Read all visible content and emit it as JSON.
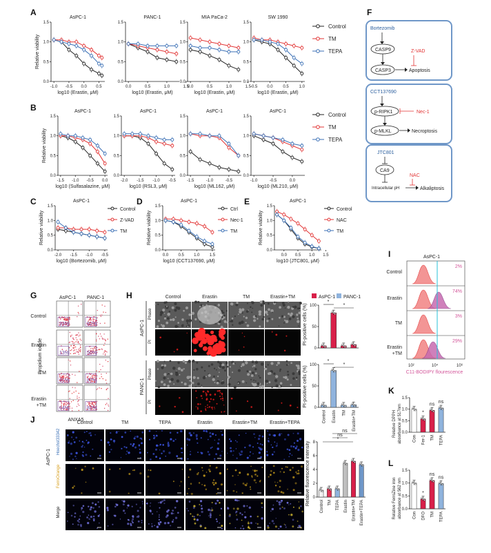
{
  "panel_labels": [
    "A",
    "B",
    "C",
    "D",
    "E",
    "F",
    "G",
    "H",
    "I",
    "J",
    "K",
    "L"
  ],
  "colors": {
    "control": "#222222",
    "tm": "#e23333",
    "tepa": "#3a6fb5",
    "box": "#6f97c8",
    "pink": "#d3569a",
    "cyan": "#27c0d8",
    "aspc": "#d81f49",
    "panc": "#8fb3dd",
    "gray": "#bfbfbf"
  },
  "legend_ctl": {
    "control": "Control",
    "tm": "TM",
    "tepa": "TEPA"
  },
  "legend_c": {
    "control": "Control",
    "zvad": "Z-VAD",
    "tm": "TM"
  },
  "legend_d": {
    "ctrl": "Ctrl",
    "nec": "Nec-1",
    "tm": "TM"
  },
  "legend_e": {
    "control": "Control",
    "nac": "NAC",
    "tm": "TM"
  },
  "ylabel_viability": "Relative viability",
  "viability_ticks": [
    "0.0",
    "0.5",
    "1.0",
    "1.5"
  ],
  "panel_a": [
    {
      "title": "AsPC-1",
      "xlabel": "log10 (Erastin, μM)",
      "ticks": [
        "-1.0",
        "-0.5",
        "0.0",
        "0.5"
      ]
    },
    {
      "title": "PANC-1",
      "xlabel": "log10 (Erastin, μM)",
      "ticks": [
        "0.0",
        "0.5",
        "1.0",
        "1.5"
      ]
    },
    {
      "title": "MIA PaCa-2",
      "xlabel": "log10 (Erastin, μM)",
      "ticks": [
        "0.0",
        "0.5",
        "1.0",
        "1.5"
      ]
    },
    {
      "title": "SW 1990",
      "xlabel": "log10 (Erastin, μM)",
      "ticks": [
        "-0.5",
        "0.0",
        "0.5",
        "1.0"
      ]
    }
  ],
  "panel_b": [
    {
      "title": "AsPC-1",
      "xlabel": "log10 (Sulfasalazine, μM)",
      "ticks": [
        "-1.5",
        "-1.0",
        "-0.5",
        "0.0"
      ]
    },
    {
      "title": "AsPC-1",
      "xlabel": "log10 (RSL3, μM)",
      "ticks": [
        "-2.0",
        "-1.5",
        "-1.0",
        "-0.5"
      ]
    },
    {
      "title": "AsPC-1",
      "xlabel": "log10 (ML162, μM)",
      "ticks": [
        "-1.5",
        "-1.0",
        "-0.5"
      ]
    },
    {
      "title": "AsPC-1",
      "xlabel": "log10 (ML210, μM)",
      "ticks": [
        "-1.0",
        "-0.5",
        "0.0"
      ]
    }
  ],
  "panel_c": {
    "title": "AsPC-1",
    "xlabel": "log10 (Bortezomib, μM)",
    "ticks": [
      "-2.0",
      "-1.5",
      "-1.0",
      "-0.5"
    ]
  },
  "panel_d": {
    "title": "AsPC-1",
    "xlabel": "log10 (CCT137690, μM)",
    "ticks": [
      "0.0",
      "0.5",
      "1.0",
      "1.5"
    ]
  },
  "panel_e": {
    "title": "AsPC-1",
    "xlabel": "log10 (JTC801, μM)",
    "ticks": [
      "0.0",
      "0.5",
      "1.0",
      "1.5"
    ]
  },
  "panel_f": {
    "box1": {
      "drug": "Bortezomib",
      "n1": "CASP9",
      "n2": "CASP3",
      "inhibitor": "Z-VAD",
      "outcome": "Apoptosis"
    },
    "box2": {
      "drug": "CCT137690",
      "n1": "p-RIPK1",
      "n2": "p-MLKL",
      "inhibitor": "Nec-1",
      "outcome": "Necroptosis"
    },
    "box3": {
      "drug": "JTC801",
      "n1": "CA9",
      "n2": "Intracellular pH",
      "inhibitor": "NAC",
      "outcome": "Alkaliptosis"
    }
  },
  "panel_g": {
    "cols": [
      "AsPC-1",
      "PANC-1"
    ],
    "rows": [
      "Control",
      "Erastin",
      "TM",
      "Erastin\n+TM"
    ],
    "values": [
      [
        "93%",
        "82%"
      ],
      [
        "13%",
        "50%"
      ],
      [
        "91%",
        "87%"
      ],
      [
        "64%",
        "82%"
      ]
    ],
    "ylabel": "Propidium iodide",
    "xlabel": "ANXA5"
  },
  "panel_h": {
    "cols": [
      "Control",
      "Erastin",
      "TM",
      "Erastin+TM"
    ],
    "rows": [
      "Phase",
      "PI",
      "Phase",
      "PI"
    ],
    "groups": [
      "AsPC-1",
      "PANC-1"
    ],
    "legend": [
      "AsPC-1",
      "PANC-1"
    ],
    "ylabel": "PI-positive cells (%)",
    "ticks": [
      "0",
      "50",
      "100"
    ],
    "categories": [
      "Control",
      "Erastin",
      "TM",
      "Erastin+TM"
    ],
    "star": "*"
  },
  "panel_i": {
    "title": "AsPC-1",
    "rows": [
      "Control",
      "Erastin",
      "TM",
      "Erastin\n+TM"
    ],
    "values": [
      "2%",
      "74%",
      "3%",
      "29%"
    ],
    "xlabel": "C11-BODIPY flourescence",
    "ticks": [
      "10²",
      "10⁴",
      "10⁶"
    ]
  },
  "panel_j": {
    "cols": [
      "Control",
      "TM",
      "TEPA",
      "Erastin",
      "Erastin+TM",
      "Erastin+TEPA"
    ],
    "rows": [
      "Hoechst33342",
      "FerroOrange",
      "Merge"
    ],
    "cell_line": "AsPC-1",
    "ylabel": "Relative fluorescence intensity",
    "ticks": [
      "0",
      "2",
      "4",
      "6",
      "8"
    ],
    "ns": "ns",
    "star": "*"
  },
  "panel_k": {
    "ylabel": "Relative DPPH\nabsorbance at 517nm",
    "categories": [
      "Con",
      "Fer-1",
      "TM",
      "TEPA"
    ],
    "ticks": [
      "0.0",
      "0.5",
      "1.0",
      "1.5"
    ],
    "marks": [
      "",
      "*",
      "ns",
      "ns"
    ]
  },
  "panel_l": {
    "ylabel": "Relative FerroZine iron\nabsorbance at 562 nm",
    "categories": [
      "Con",
      "DFO",
      "TM",
      "TEPA"
    ],
    "ticks": [
      "0.0",
      "0.5",
      "1.0",
      "1.5"
    ],
    "marks": [
      "",
      "*",
      "ns",
      "ns"
    ]
  },
  "chart_data": [
    {
      "type": "line",
      "panel": "A",
      "title": "AsPC-1",
      "xlabel": "log10 (Erastin, μM)",
      "ylabel": "Relative viability",
      "ylim": [
        0,
        1.5
      ],
      "x": [
        -1.0,
        -0.75,
        -0.5,
        -0.25,
        0.0,
        0.25,
        0.5,
        0.6
      ],
      "series": [
        {
          "name": "Control",
          "values": [
            1.05,
            1.0,
            0.8,
            0.65,
            0.45,
            0.3,
            0.2,
            0.15
          ]
        },
        {
          "name": "TM",
          "values": [
            1.05,
            1.05,
            1.0,
            1.0,
            0.9,
            0.8,
            0.65,
            0.6
          ]
        },
        {
          "name": "TEPA",
          "values": [
            1.05,
            1.0,
            0.95,
            0.9,
            0.8,
            0.65,
            0.45,
            0.4
          ]
        }
      ]
    },
    {
      "type": "line",
      "panel": "A",
      "title": "PANC-1",
      "xlabel": "log10 (Erastin, μM)",
      "ylabel": "Relative viability",
      "ylim": [
        0,
        1.5
      ],
      "x": [
        0.0,
        0.25,
        0.5,
        0.75,
        1.0,
        1.25
      ],
      "series": [
        {
          "name": "Control",
          "values": [
            0.95,
            0.85,
            0.75,
            0.6,
            0.55,
            0.5
          ]
        },
        {
          "name": "TM",
          "values": [
            0.95,
            0.9,
            0.85,
            0.8,
            0.75,
            0.7
          ]
        },
        {
          "name": "TEPA",
          "values": [
            0.95,
            0.95,
            0.9,
            0.9,
            0.9,
            0.9
          ]
        }
      ]
    },
    {
      "type": "line",
      "panel": "A",
      "title": "MIA PaCa-2",
      "xlabel": "log10 (Erastin, μM)",
      "ylabel": "Relative viability",
      "ylim": [
        0,
        1.5
      ],
      "x": [
        0.0,
        0.25,
        0.5,
        0.75,
        1.0,
        1.25
      ],
      "series": [
        {
          "name": "Control",
          "values": [
            0.8,
            0.75,
            0.65,
            0.55,
            0.4,
            0.3
          ]
        },
        {
          "name": "TM",
          "values": [
            1.1,
            1.05,
            1.0,
            0.95,
            0.9,
            0.85
          ]
        },
        {
          "name": "TEPA",
          "values": [
            0.9,
            0.85,
            0.85,
            0.8,
            0.75,
            0.75
          ]
        }
      ]
    },
    {
      "type": "line",
      "panel": "A",
      "title": "SW 1990",
      "xlabel": "log10 (Erastin, μM)",
      "ylabel": "Relative viability",
      "ylim": [
        0,
        1.5
      ],
      "x": [
        -0.5,
        -0.25,
        0.0,
        0.25,
        0.5,
        0.75,
        1.0
      ],
      "series": [
        {
          "name": "Control",
          "values": [
            1.05,
            1.0,
            0.95,
            0.8,
            0.6,
            0.4,
            0.2
          ]
        },
        {
          "name": "TM",
          "values": [
            1.1,
            1.05,
            1.05,
            1.0,
            0.95,
            0.9,
            0.85
          ]
        },
        {
          "name": "TEPA",
          "values": [
            1.05,
            1.05,
            1.0,
            0.95,
            0.8,
            0.6,
            0.45
          ]
        }
      ]
    },
    {
      "type": "line",
      "panel": "B",
      "title": "AsPC-1",
      "xlabel": "log10 (Sulfasalazine, μM)",
      "ylabel": "Relative viability",
      "ylim": [
        0,
        1.5
      ],
      "x": [
        -1.5,
        -1.25,
        -1.0,
        -0.75,
        -0.5,
        -0.25,
        0.0
      ],
      "series": [
        {
          "name": "Control",
          "values": [
            1.0,
            0.95,
            0.85,
            0.7,
            0.5,
            0.3,
            0.1
          ]
        },
        {
          "name": "TM",
          "values": [
            1.0,
            1.0,
            0.95,
            0.9,
            0.8,
            0.6,
            0.3
          ]
        },
        {
          "name": "TEPA",
          "values": [
            1.05,
            1.0,
            1.0,
            0.95,
            0.9,
            0.75,
            0.55
          ]
        }
      ]
    },
    {
      "type": "line",
      "panel": "B",
      "title": "AsPC-1",
      "xlabel": "log10 (RSL3, μM)",
      "ylabel": "Relative viability",
      "ylim": [
        0,
        1.5
      ],
      "x": [
        -2.0,
        -1.75,
        -1.5,
        -1.25,
        -1.0,
        -0.75,
        -0.5
      ],
      "series": [
        {
          "name": "Control",
          "values": [
            1.0,
            1.0,
            0.95,
            0.8,
            0.55,
            0.3,
            0.15
          ]
        },
        {
          "name": "TM",
          "values": [
            1.0,
            1.0,
            1.0,
            0.95,
            0.85,
            0.8,
            0.75
          ]
        },
        {
          "name": "TEPA",
          "values": [
            1.05,
            1.05,
            1.05,
            1.0,
            0.95,
            0.9,
            0.9
          ]
        }
      ]
    },
    {
      "type": "line",
      "panel": "B",
      "title": "AsPC-1",
      "xlabel": "log10 (ML162, μM)",
      "ylabel": "Relative viability",
      "ylim": [
        0,
        1.5
      ],
      "x": [
        -1.5,
        -1.25,
        -1.0,
        -0.75,
        -0.5,
        -0.25
      ],
      "series": [
        {
          "name": "Control",
          "values": [
            0.6,
            0.4,
            0.3,
            0.2,
            0.15,
            0.1
          ]
        },
        {
          "name": "TM",
          "values": [
            1.05,
            1.0,
            1.0,
            0.95,
            0.7,
            0.5
          ]
        },
        {
          "name": "TEPA",
          "values": [
            1.05,
            1.05,
            1.0,
            1.0,
            0.8,
            0.5
          ]
        }
      ]
    },
    {
      "type": "line",
      "panel": "B",
      "title": "AsPC-1",
      "xlabel": "log10 (ML210, μM)",
      "ylabel": "Relative viability",
      "ylim": [
        0,
        1.5
      ],
      "x": [
        -1.0,
        -0.75,
        -0.5,
        -0.25,
        0.0,
        0.25
      ],
      "series": [
        {
          "name": "Control",
          "values": [
            1.0,
            0.9,
            0.8,
            0.6,
            0.45,
            0.35
          ]
        },
        {
          "name": "TM",
          "values": [
            1.05,
            1.0,
            0.95,
            0.85,
            0.75,
            0.65
          ]
        },
        {
          "name": "TEPA",
          "values": [
            1.05,
            1.0,
            0.95,
            0.9,
            0.8,
            0.75
          ]
        }
      ]
    },
    {
      "type": "line",
      "panel": "C",
      "title": "AsPC-1",
      "xlabel": "log10 (Bortezomib, μM)",
      "ylabel": "Relative viability",
      "ylim": [
        0,
        1.5
      ],
      "x": [
        -2.0,
        -1.75,
        -1.5,
        -1.25,
        -1.0,
        -0.75,
        -0.5
      ],
      "series": [
        {
          "name": "Control",
          "values": [
            0.7,
            0.65,
            0.6,
            0.55,
            0.5,
            0.45,
            0.4
          ]
        },
        {
          "name": "Z-VAD",
          "values": [
            0.75,
            0.75,
            0.7,
            0.7,
            0.7,
            0.65,
            0.6
          ]
        },
        {
          "name": "TM",
          "values": [
            0.95,
            0.75,
            0.6,
            0.55,
            0.5,
            0.45,
            0.4
          ]
        }
      ]
    },
    {
      "type": "line",
      "panel": "D",
      "title": "AsPC-1",
      "xlabel": "log10 (CCT137690, μM)",
      "ylabel": "Relative viability",
      "ylim": [
        0,
        1.5
      ],
      "x": [
        0.0,
        0.25,
        0.5,
        0.75,
        1.0,
        1.25,
        1.5
      ],
      "series": [
        {
          "name": "Ctrl",
          "values": [
            1.0,
            0.95,
            0.8,
            0.6,
            0.4,
            0.2,
            0.1
          ]
        },
        {
          "name": "Nec-1",
          "values": [
            1.05,
            1.05,
            1.0,
            0.95,
            0.9,
            0.8,
            0.6
          ]
        },
        {
          "name": "TM",
          "values": [
            1.0,
            0.95,
            0.85,
            0.65,
            0.45,
            0.3,
            0.2
          ]
        }
      ]
    },
    {
      "type": "line",
      "panel": "E",
      "title": "AsPC-1",
      "xlabel": "log10 (JTC801, μM)",
      "ylabel": "Relative viability",
      "ylim": [
        0,
        1.5
      ],
      "x": [
        -0.25,
        0.0,
        0.25,
        0.5,
        0.75,
        1.0,
        1.25
      ],
      "series": [
        {
          "name": "Control",
          "values": [
            1.2,
            1.0,
            0.7,
            0.4,
            0.2,
            0.1,
            0.05
          ]
        },
        {
          "name": "NAC",
          "values": [
            1.3,
            1.2,
            1.05,
            0.9,
            0.7,
            0.5,
            0.3
          ]
        },
        {
          "name": "TM",
          "values": [
            1.2,
            1.0,
            0.75,
            0.45,
            0.25,
            0.12,
            0.05
          ]
        }
      ]
    },
    {
      "type": "bar",
      "panel": "H",
      "title": "AsPC-1",
      "ylabel": "PI-positive cells (%)",
      "ylim": [
        0,
        100
      ],
      "categories": [
        "Control",
        "Erastin",
        "TM",
        "Erastin+TM"
      ],
      "values": [
        5,
        82,
        5,
        8
      ]
    },
    {
      "type": "bar",
      "panel": "H",
      "title": "PANC-1",
      "ylabel": "PI-positive cells (%)",
      "ylim": [
        0,
        100
      ],
      "categories": [
        "Control",
        "Erastin",
        "TM",
        "Erastin+TM"
      ],
      "values": [
        5,
        86,
        5,
        6
      ]
    },
    {
      "type": "bar",
      "panel": "J",
      "ylabel": "Relative fluorescence intensity",
      "ylim": [
        0,
        8
      ],
      "categories": [
        "Control",
        "TM",
        "TEPA",
        "Erastin",
        "Erastin+TM",
        "Erastin+TEPA"
      ],
      "values": [
        1.0,
        1.2,
        1.2,
        4.9,
        5.2,
        4.7
      ]
    },
    {
      "type": "bar",
      "panel": "K",
      "ylabel": "Relative DPPH absorbance at 517nm",
      "ylim": [
        0,
        1.5
      ],
      "categories": [
        "Con",
        "Fer-1",
        "TM",
        "TEPA"
      ],
      "values": [
        1.0,
        0.58,
        0.95,
        1.05
      ]
    },
    {
      "type": "bar",
      "panel": "L",
      "ylabel": "Relative FerroZine iron absorbance at 562 nm",
      "ylim": [
        0,
        1.5
      ],
      "categories": [
        "Con",
        "DFO",
        "TM",
        "TEPA"
      ],
      "values": [
        1.0,
        0.38,
        1.1,
        0.98
      ]
    }
  ]
}
